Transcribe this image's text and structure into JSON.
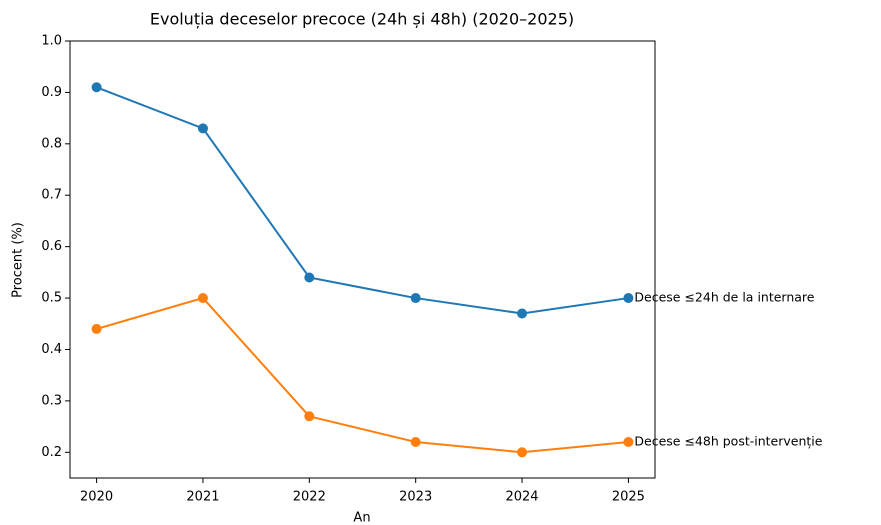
{
  "chart_data": {
    "type": "line",
    "title": "Evoluția deceselor precoce (24h și 48h) (2020–2025)",
    "xlabel": "An",
    "ylabel": "Procent (%)",
    "x": [
      2020,
      2021,
      2022,
      2023,
      2024,
      2025
    ],
    "series": [
      {
        "name": "Decese ≤24h de la internare",
        "color": "#1f77b4",
        "values": [
          0.91,
          0.83,
          0.54,
          0.5,
          0.47,
          0.5
        ]
      },
      {
        "name": "Decese ≤48h post-intervenție",
        "color": "#ff7f0e",
        "values": [
          0.44,
          0.5,
          0.27,
          0.22,
          0.2,
          0.22
        ]
      }
    ],
    "xlim": [
      2019.75,
      2025.25
    ],
    "xticks": [
      2020,
      2021,
      2022,
      2023,
      2024,
      2025
    ],
    "ylim": [
      0.15,
      1.0
    ],
    "yticks": [
      0.2,
      0.3,
      0.4,
      0.5,
      0.6,
      0.7,
      0.8,
      0.9,
      {
        "value": 1,
        "label": "1.0"
      }
    ],
    "grid": false
  }
}
